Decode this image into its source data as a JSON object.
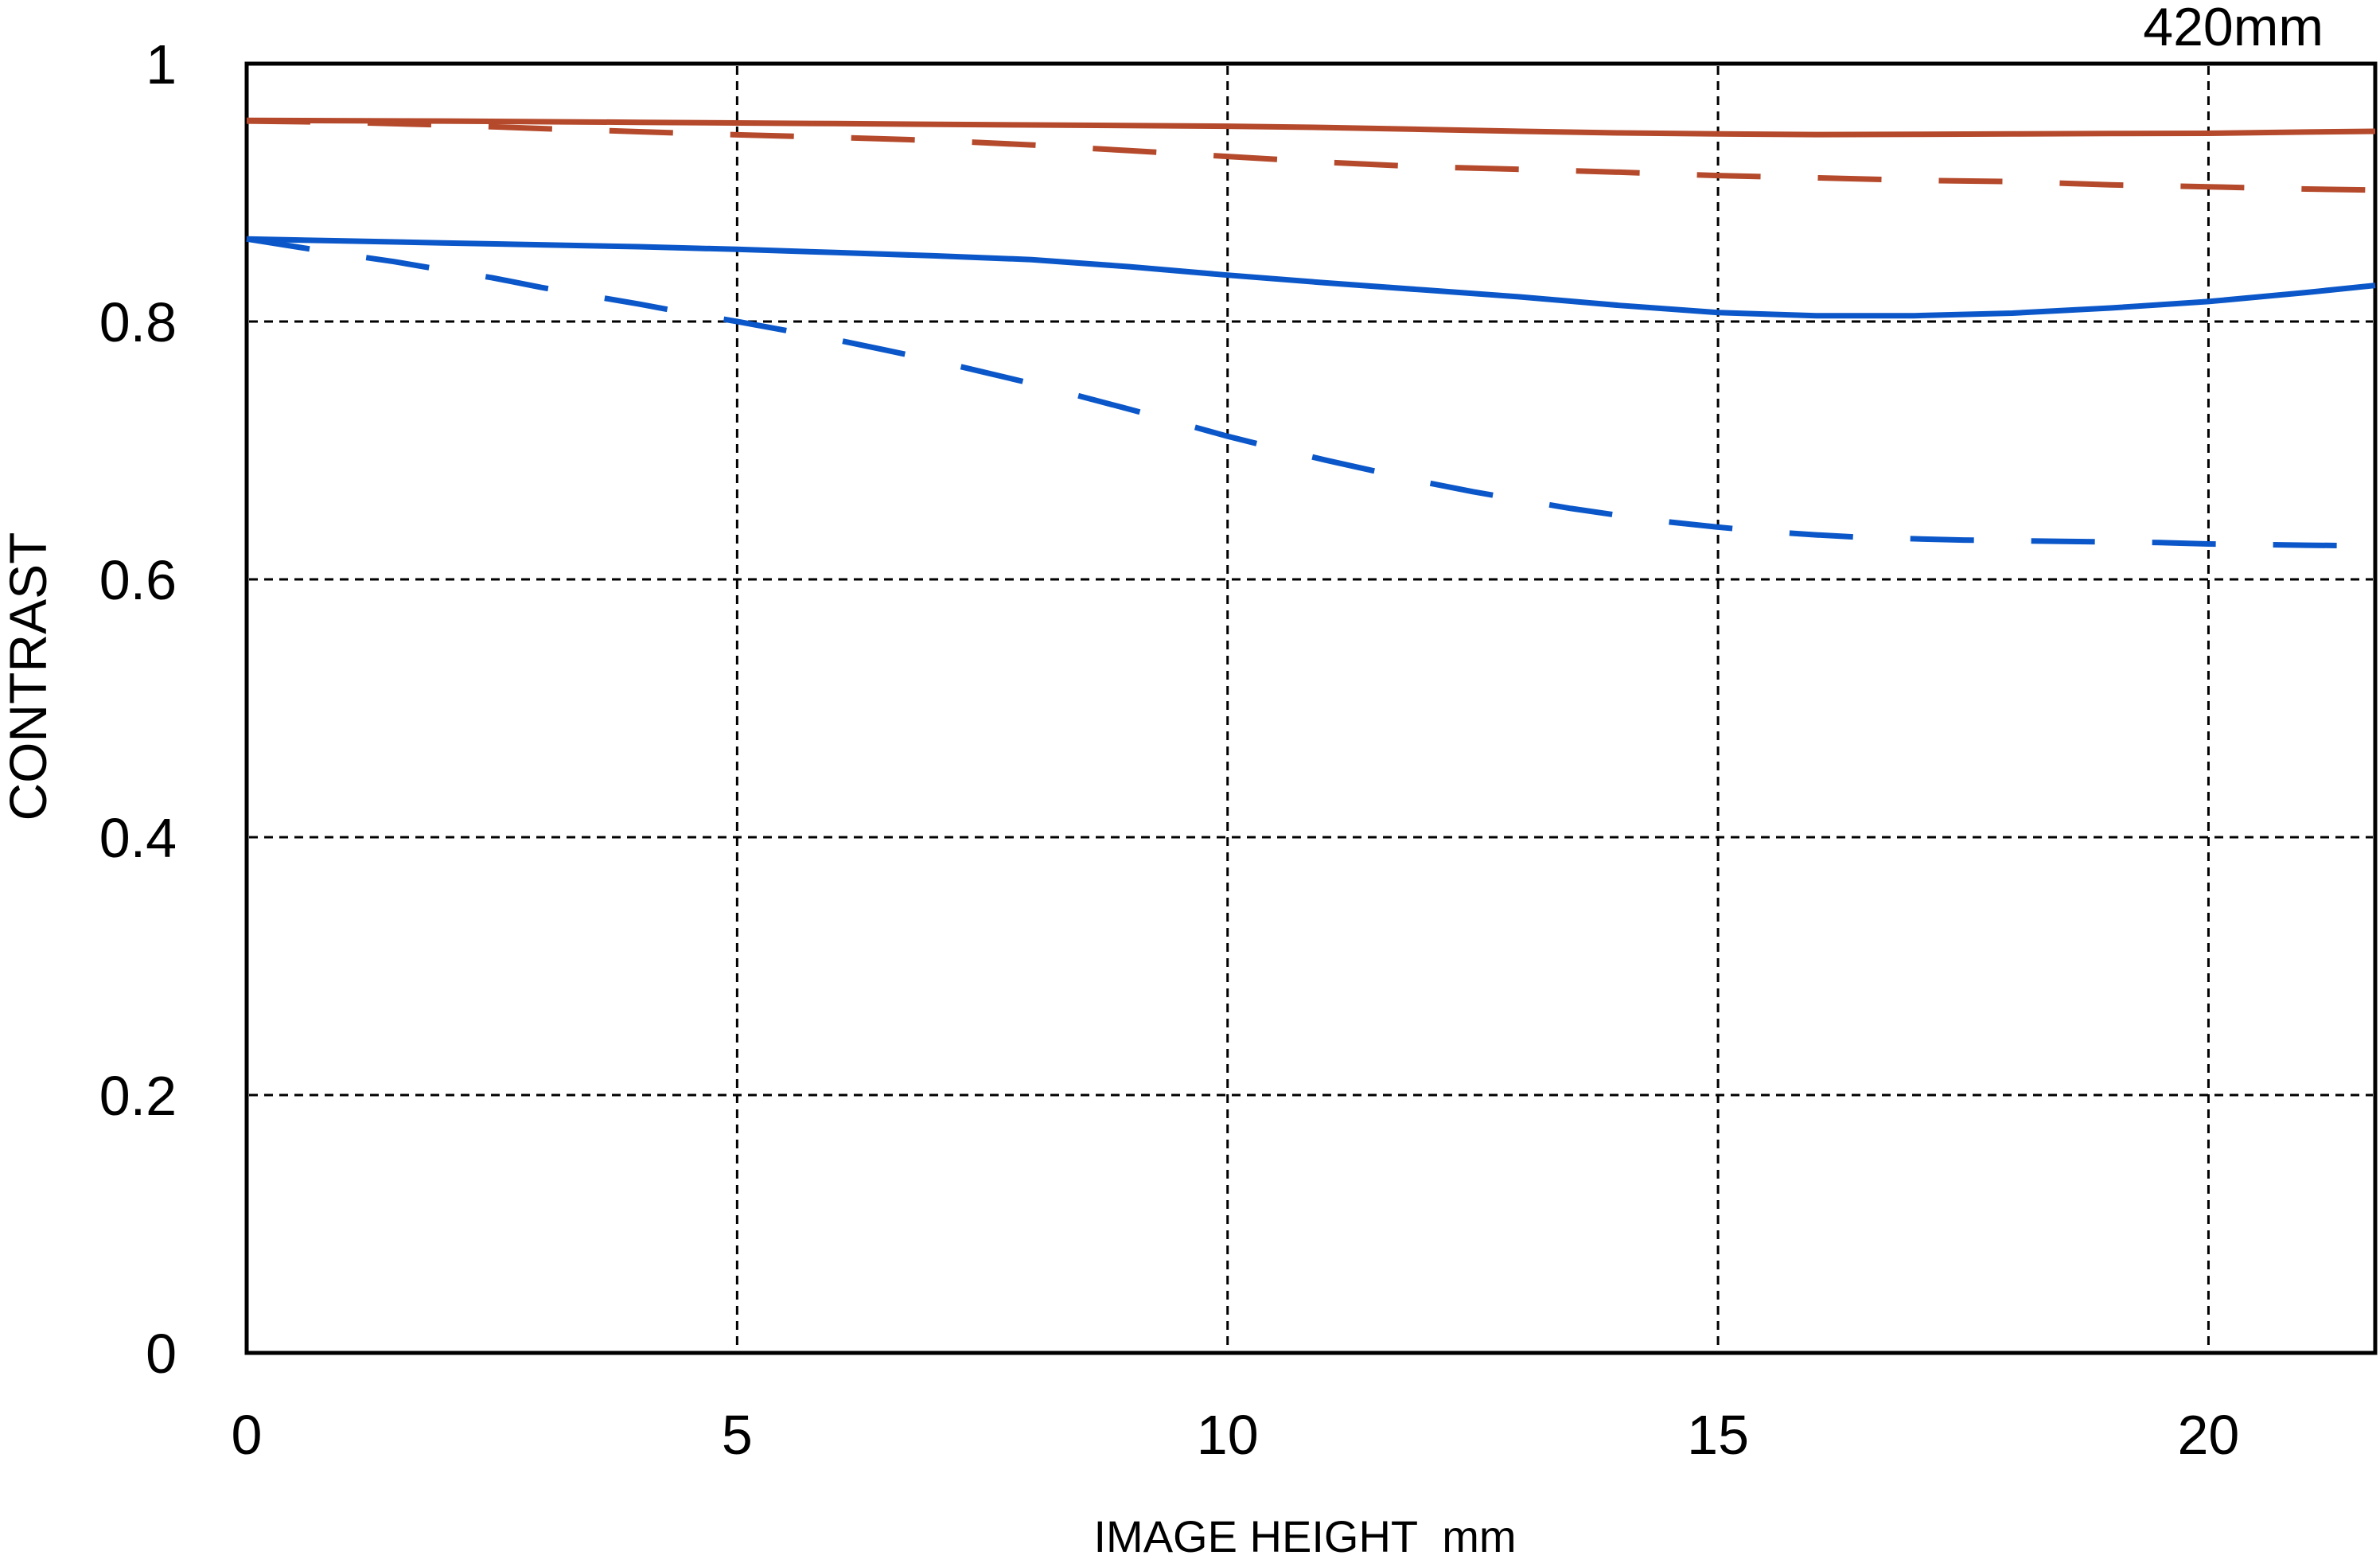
{
  "focal_length_label": "420mm",
  "colors": {
    "red": "#b5492b",
    "blue": "#0b57c9",
    "grid": "#000000",
    "border": "#000000",
    "background": "#ffffff"
  },
  "y_axis": {
    "title": "CONTRAST",
    "tick_labels": [
      "0",
      "0.2",
      "0.4",
      "0.6",
      "0.8",
      "1"
    ]
  },
  "x_axis": {
    "title": "IMAGE HEIGHT  mm",
    "tick_labels": [
      "0",
      "5",
      "10",
      "15",
      "20"
    ]
  },
  "chart_data": {
    "type": "line",
    "title": "420mm",
    "xlabel": "IMAGE HEIGHT  mm",
    "ylabel": "CONTRAST",
    "xlim": [
      0,
      21.7
    ],
    "ylim": [
      0,
      1
    ],
    "x_ticks": [
      0,
      5,
      10,
      15,
      20
    ],
    "y_ticks": [
      0,
      0.2,
      0.4,
      0.6,
      0.8,
      1
    ],
    "grid": "dashed",
    "legend": "none",
    "series": [
      {
        "name": "red-solid",
        "color": "#b5492b",
        "style": "solid",
        "points": [
          [
            0,
            0.956
          ],
          [
            2,
            0.9555
          ],
          [
            4,
            0.9545
          ],
          [
            6,
            0.9535
          ],
          [
            8,
            0.9525
          ],
          [
            10,
            0.9515
          ],
          [
            11,
            0.9505
          ],
          [
            12,
            0.949
          ],
          [
            13,
            0.9475
          ],
          [
            14,
            0.9463
          ],
          [
            15,
            0.9455
          ],
          [
            16,
            0.945
          ],
          [
            17,
            0.9452
          ],
          [
            18,
            0.9455
          ],
          [
            19,
            0.9458
          ],
          [
            20,
            0.946
          ],
          [
            21,
            0.947
          ],
          [
            21.7,
            0.9475
          ]
        ]
      },
      {
        "name": "red-dashed",
        "color": "#b5492b",
        "style": "dashed",
        "points": [
          [
            0,
            0.9555
          ],
          [
            1,
            0.9545
          ],
          [
            2,
            0.9525
          ],
          [
            3,
            0.9497
          ],
          [
            4,
            0.9472
          ],
          [
            5,
            0.9448
          ],
          [
            6,
            0.9428
          ],
          [
            7,
            0.9405
          ],
          [
            8,
            0.937
          ],
          [
            9,
            0.9325
          ],
          [
            10,
            0.928
          ],
          [
            11,
            0.9235
          ],
          [
            12,
            0.92
          ],
          [
            13,
            0.918
          ],
          [
            14,
            0.9158
          ],
          [
            15,
            0.9132
          ],
          [
            16,
            0.9115
          ],
          [
            17,
            0.9095
          ],
          [
            18,
            0.9085
          ],
          [
            19,
            0.906
          ],
          [
            20,
            0.9045
          ],
          [
            21,
            0.9028
          ],
          [
            21.7,
            0.902
          ]
        ]
      },
      {
        "name": "blue-solid",
        "color": "#0b57c9",
        "style": "solid",
        "points": [
          [
            0,
            0.864
          ],
          [
            1,
            0.8625
          ],
          [
            2,
            0.861
          ],
          [
            3,
            0.8595
          ],
          [
            4,
            0.858
          ],
          [
            5,
            0.856
          ],
          [
            6,
            0.8535
          ],
          [
            7,
            0.851
          ],
          [
            8,
            0.848
          ],
          [
            9,
            0.8425
          ],
          [
            10,
            0.836
          ],
          [
            11,
            0.83
          ],
          [
            12,
            0.8245
          ],
          [
            13,
            0.819
          ],
          [
            14,
            0.8125
          ],
          [
            15,
            0.807
          ],
          [
            16,
            0.8045
          ],
          [
            17,
            0.8045
          ],
          [
            18,
            0.8065
          ],
          [
            19,
            0.8105
          ],
          [
            20,
            0.8155
          ],
          [
            21,
            0.8225
          ],
          [
            21.7,
            0.828
          ]
        ]
      },
      {
        "name": "blue-dashed",
        "color": "#0b57c9",
        "style": "dashed",
        "points": [
          [
            0,
            0.864
          ],
          [
            0.5,
            0.858
          ],
          [
            1,
            0.852
          ],
          [
            1.5,
            0.8465
          ],
          [
            2,
            0.84
          ],
          [
            2.5,
            0.834
          ],
          [
            3,
            0.8265
          ],
          [
            3.5,
            0.82
          ],
          [
            4,
            0.8135
          ],
          [
            4.5,
            0.8065
          ],
          [
            5,
            0.8
          ],
          [
            5.5,
            0.793
          ],
          [
            6,
            0.786
          ],
          [
            6.5,
            0.778
          ],
          [
            7,
            0.77
          ],
          [
            7.5,
            0.761
          ],
          [
            8,
            0.752
          ],
          [
            8.5,
            0.742
          ],
          [
            9,
            0.732
          ],
          [
            9.5,
            0.7215
          ],
          [
            10,
            0.711
          ],
          [
            10.5,
            0.7015
          ],
          [
            11,
            0.6925
          ],
          [
            11.5,
            0.684
          ],
          [
            12,
            0.6755
          ],
          [
            12.5,
            0.668
          ],
          [
            13,
            0.6615
          ],
          [
            13.5,
            0.655
          ],
          [
            14,
            0.6495
          ],
          [
            14.5,
            0.6445
          ],
          [
            15,
            0.6405
          ],
          [
            15.5,
            0.637
          ],
          [
            16,
            0.6345
          ],
          [
            16.5,
            0.6325
          ],
          [
            17,
            0.6315
          ],
          [
            17.5,
            0.6305
          ],
          [
            18,
            0.63
          ],
          [
            18.5,
            0.6295
          ],
          [
            19,
            0.629
          ],
          [
            19.5,
            0.6285
          ],
          [
            20,
            0.6275
          ],
          [
            20.5,
            0.627
          ],
          [
            21,
            0.6265
          ],
          [
            21.7,
            0.626
          ]
        ]
      }
    ]
  }
}
